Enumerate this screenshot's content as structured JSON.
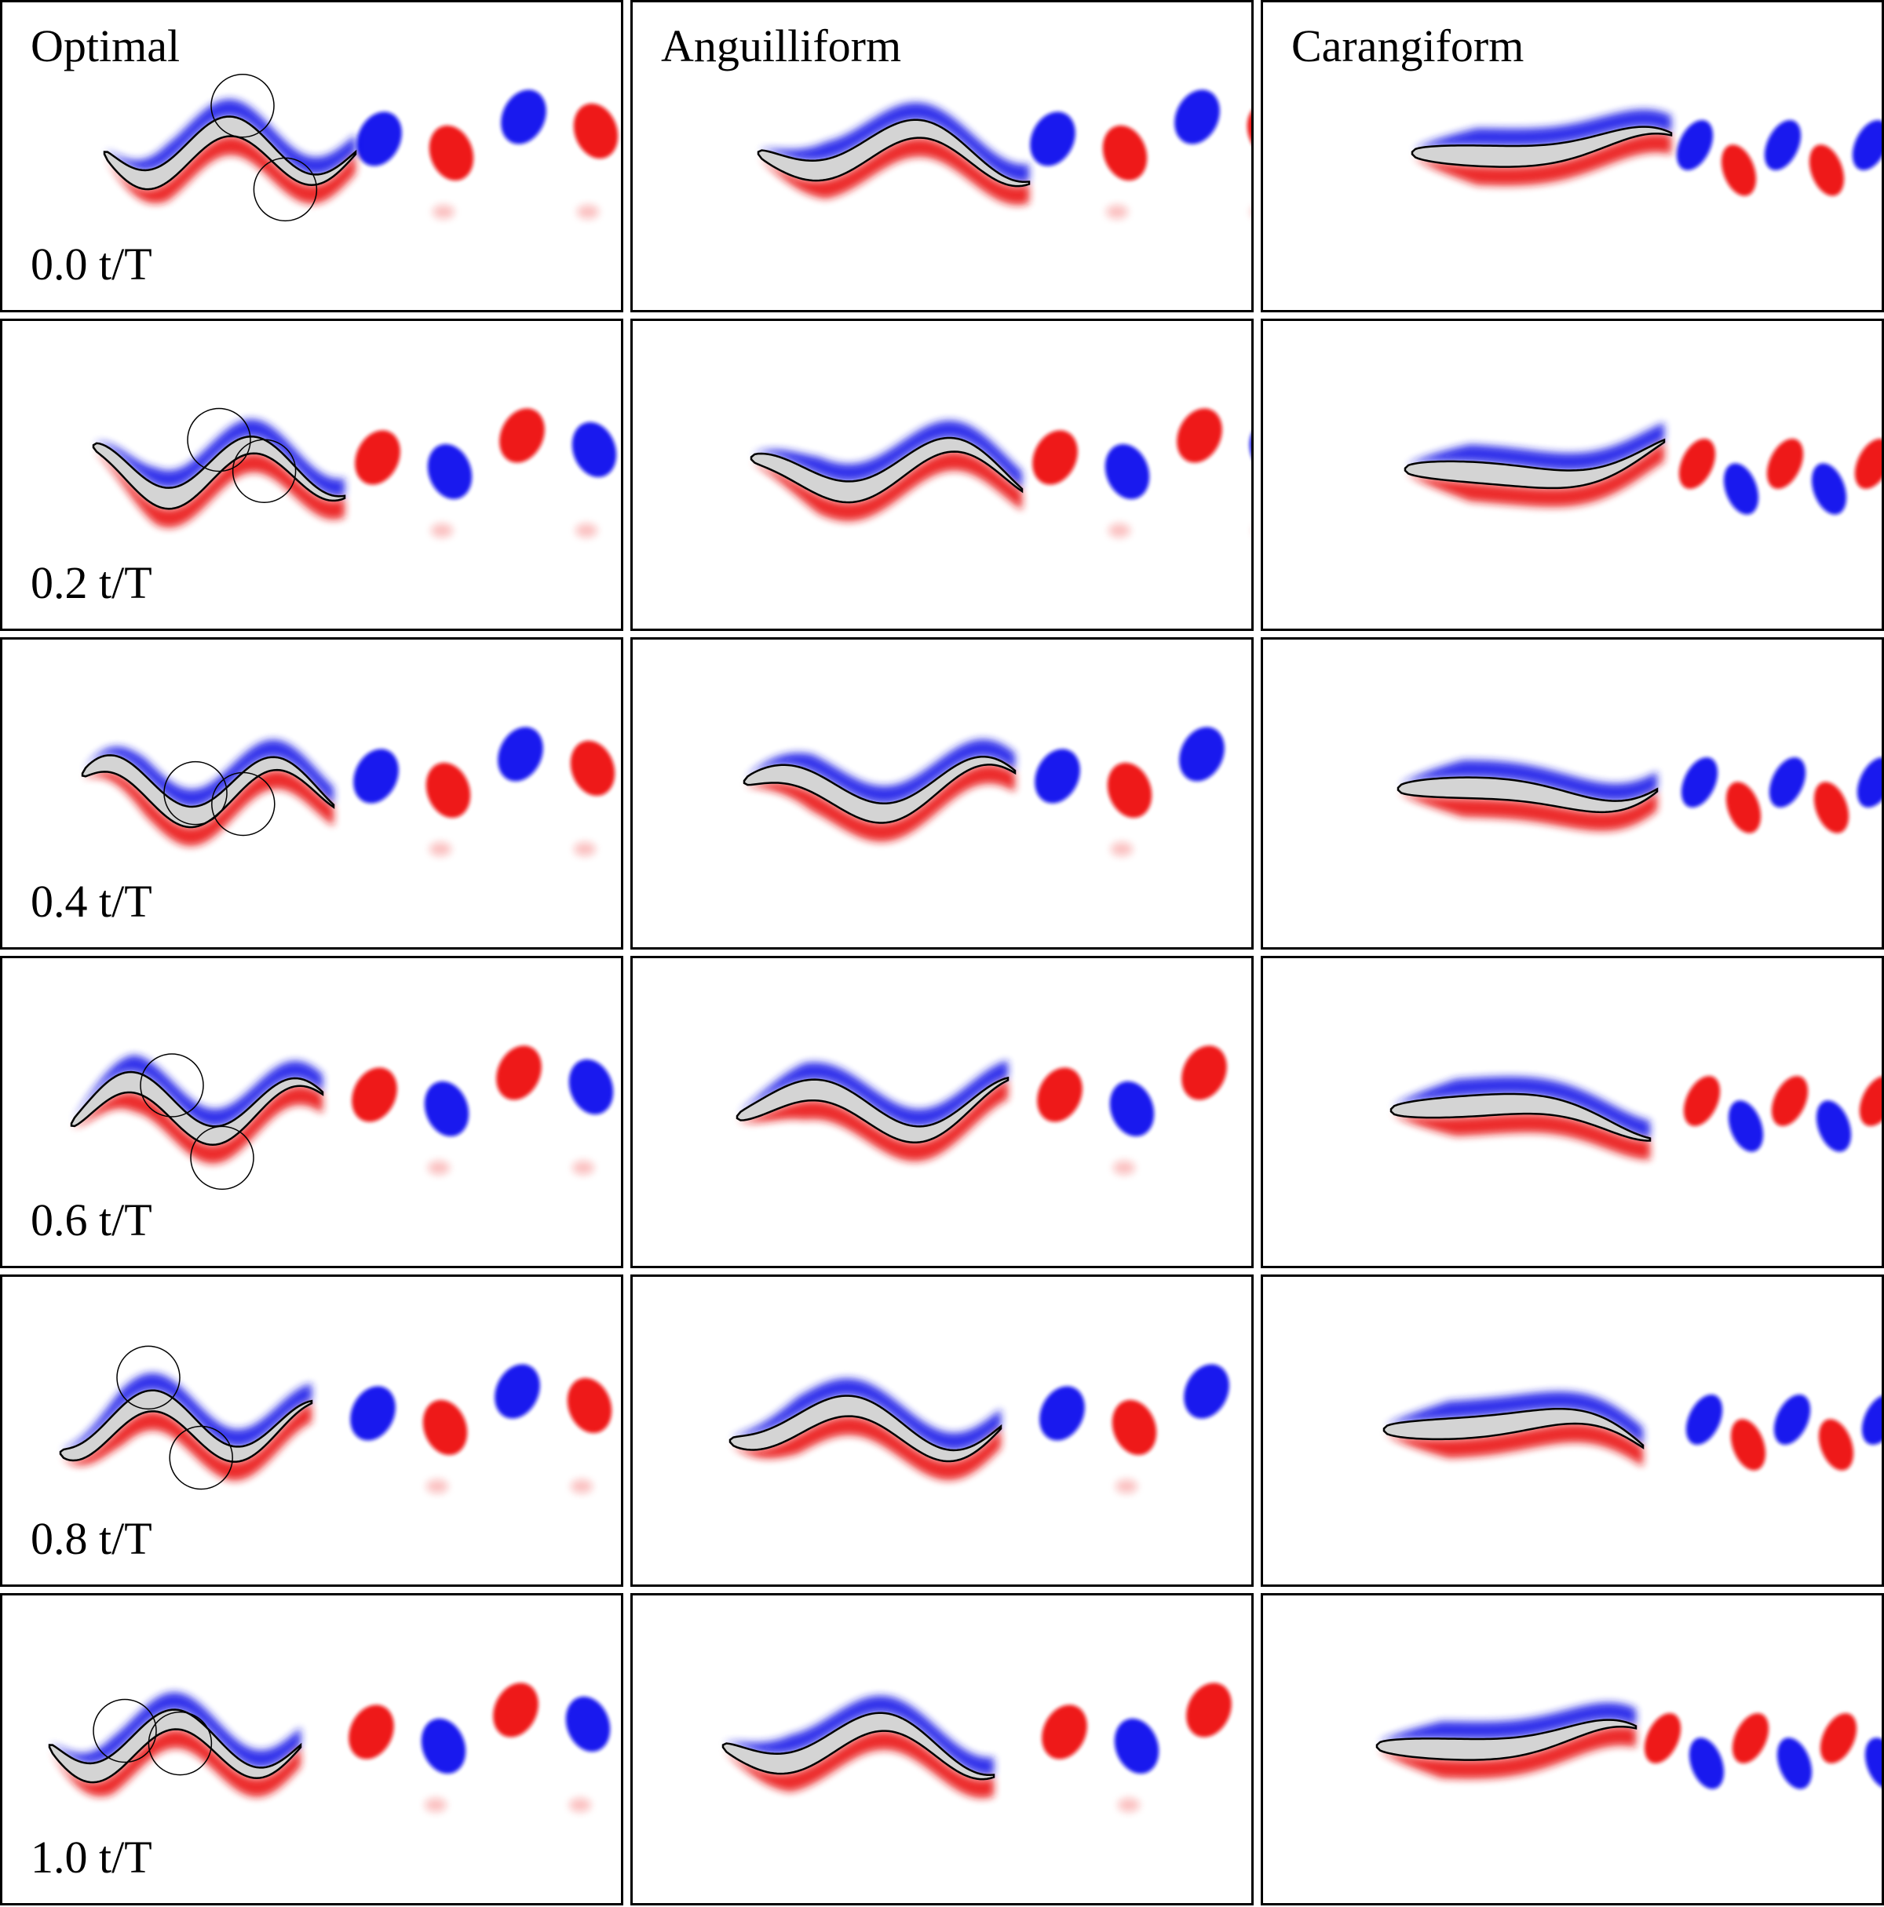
{
  "columns": [
    "Optimal",
    "Anguilliform",
    "Carangiform"
  ],
  "rows": [
    "0.0 t/T",
    "0.2 t/T",
    "0.4 t/T",
    "0.6 t/T",
    "0.8 t/T",
    "1.0 t/T"
  ]
}
